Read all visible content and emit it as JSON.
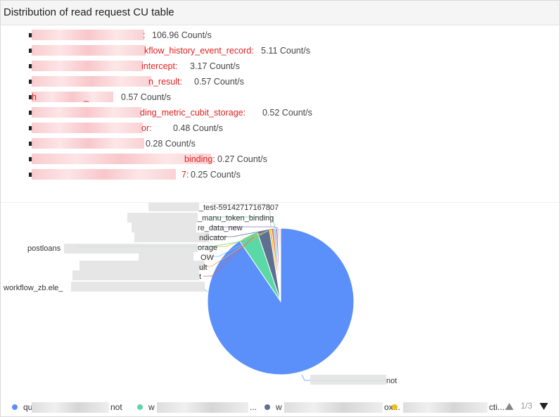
{
  "panel": {
    "title": "Distribution of read request CU table"
  },
  "summary_items": [
    {
      "name_visible": ":",
      "value": "106.96 Count/s"
    },
    {
      "name_visible": "kflow_history_event_record:",
      "value": "5.11 Count/s"
    },
    {
      "name_visible": "intercept:",
      "value": "3.17 Count/s"
    },
    {
      "name_visible": "n_result:",
      "value": "0.57 Count/s"
    },
    {
      "name_visible": "h",
      "name_suffix": "_",
      "value": "0.57 Count/s"
    },
    {
      "name_visible": "ding_metric_cubit_storage:",
      "value": "0.52 Count/s"
    },
    {
      "name_visible": "or:",
      "value": "0.48 Count/s"
    },
    {
      "name_visible": "",
      "value": "0.28 Count/s"
    },
    {
      "name_visible": "binding:",
      "value": "0.27 Count/s"
    },
    {
      "name_visible": "7:",
      "value": "0.25 Count/s"
    }
  ],
  "chart_data": {
    "type": "pie",
    "title": "",
    "series": [
      {
        "name": "",
        "value": 106.96,
        "color": "#5b8ff9"
      },
      {
        "name": "",
        "value": 5.11,
        "color": "#5ad8a6"
      },
      {
        "name": "",
        "value": 3.17,
        "color": "#5d7092"
      },
      {
        "name": "",
        "value": 0.57,
        "color": "#f6bd16"
      },
      {
        "name": "",
        "value": 0.57,
        "color": "#e8684a"
      },
      {
        "name": "",
        "value": 0.52,
        "color": "#6dc8ec"
      },
      {
        "name": "",
        "value": 0.48,
        "color": "#9270ca"
      },
      {
        "name": "",
        "value": 0.28,
        "color": "#ff9d4d"
      },
      {
        "name": "",
        "value": 0.27,
        "color": "#269a99"
      },
      {
        "name": "",
        "value": 0.25,
        "color": "#ff99c3"
      }
    ],
    "slice_labels": [
      {
        "text": "_test-59142717167807",
        "color": "#333333"
      },
      {
        "text": "_manu_token_binding",
        "color": "#333333"
      },
      {
        "text": "re_data_new",
        "color": "#333333"
      },
      {
        "text": "ndicator",
        "color": "#333333"
      },
      {
        "text": "orage",
        "color": "#333333"
      },
      {
        "text": "OW",
        "color": "#333333"
      },
      {
        "text": "ult",
        "color": "#333333"
      },
      {
        "text": "t",
        "color": "#333333"
      },
      {
        "text": "postloans",
        "color": "#333333"
      },
      {
        "text": "workflow_zb.ele_",
        "color": "#333333"
      },
      {
        "text": "not",
        "color": "#333333"
      }
    ]
  },
  "legend": {
    "items": [
      {
        "text_left": "qu",
        "text_right": "not",
        "color": "#5b8ff9"
      },
      {
        "text_left": "w",
        "text_right": "...",
        "color": "#5ad8a6"
      },
      {
        "text_left": "w",
        "text_right": "ox...",
        "color": "#5d7092"
      },
      {
        "text_left": "",
        "text_right": "cti...",
        "color": "#f6bd16"
      }
    ],
    "page": "1/3"
  }
}
